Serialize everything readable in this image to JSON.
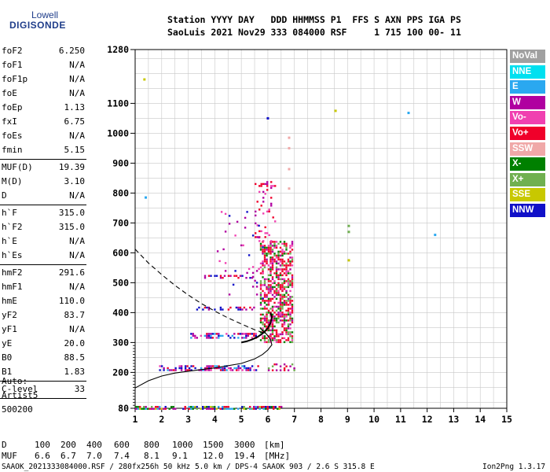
{
  "logo": {
    "brand": "Lowell",
    "product": "DIGISONDE"
  },
  "header": {
    "line1": "Station YYYY DAY   DDD HHMMSS P1  FFS S AXN PPS IGA PS",
    "line2": "SaoLuis 2021 Nov29 333 084000 RSF     1 715 100 00- 11"
  },
  "params": [
    {
      "name": "foF2",
      "value": "6.250"
    },
    {
      "name": "foF1",
      "value": "N/A"
    },
    {
      "name": "foF1p",
      "value": "N/A"
    },
    {
      "name": "foE",
      "value": "N/A"
    },
    {
      "name": "foEp",
      "value": "1.13"
    },
    {
      "name": "fxI",
      "value": "6.75"
    },
    {
      "name": "foEs",
      "value": "N/A"
    },
    {
      "name": "fmin",
      "value": "5.15"
    },
    {
      "name": "MUF(D)",
      "value": "19.39"
    },
    {
      "name": "M(D)",
      "value": "3.10"
    },
    {
      "name": "D",
      "value": "N/A"
    },
    {
      "name": "h`F",
      "value": "315.0"
    },
    {
      "name": "h`F2",
      "value": "315.0"
    },
    {
      "name": "h`E",
      "value": "N/A"
    },
    {
      "name": "h`Es",
      "value": "N/A"
    },
    {
      "name": "hmF2",
      "value": "291.6"
    },
    {
      "name": "hmF1",
      "value": "N/A"
    },
    {
      "name": "hmE",
      "value": "110.0"
    },
    {
      "name": "yF2",
      "value": "83.7"
    },
    {
      "name": "yF1",
      "value": "N/A"
    },
    {
      "name": "yE",
      "value": "20.0"
    },
    {
      "name": "B0",
      "value": "88.5"
    },
    {
      "name": "B1",
      "value": "1.83"
    },
    {
      "name": "C-level",
      "value": "33"
    }
  ],
  "auto": {
    "label": "Auto:",
    "artist": "Artist5",
    "version": "500200"
  },
  "legend": [
    {
      "label": "NoVal",
      "color": "#a0a0a0"
    },
    {
      "label": "NNE",
      "color": "#00e0f0"
    },
    {
      "label": "E",
      "color": "#2aa8f0"
    },
    {
      "label": "W",
      "color": "#b000a0"
    },
    {
      "label": "Vo-",
      "color": "#f040b0"
    },
    {
      "label": "Vo+",
      "color": "#f0002a"
    },
    {
      "label": "SSW",
      "color": "#f0a8a8"
    },
    {
      "label": "X-",
      "color": "#008000"
    },
    {
      "label": "X+",
      "color": "#70b050"
    },
    {
      "label": "SSE",
      "color": "#c8c800"
    },
    {
      "label": "NNW",
      "color": "#1010c8"
    }
  ],
  "muf_table": {
    "d_label": "D",
    "d_values": [
      "100",
      "200",
      "400",
      "600",
      "800",
      "1000",
      "1500",
      "3000"
    ],
    "d_unit": "[km]",
    "muf_label": "MUF",
    "muf_values": [
      "6.6",
      "6.7",
      "7.0",
      "7.4",
      "8.1",
      "9.1",
      "12.0",
      "19.4"
    ],
    "muf_unit": "[MHz]"
  },
  "footer": {
    "left": "SAAOK_2021333084000.RSF / 280fx256h 50 kHz 5.0 km / DPS-4 SAAOK 903 / 2.6 S 315.8 E",
    "right": "Ion2Png 1.3.17"
  },
  "chart_data": {
    "type": "scatter",
    "xlim": [
      1,
      15
    ],
    "ylim": [
      80,
      1280
    ],
    "x_ticks": [
      "1",
      "2",
      "3",
      "4",
      "5",
      "6",
      "7",
      "8",
      "9",
      "10",
      "11",
      "12",
      "13",
      "14",
      "15"
    ],
    "y_ticks": [
      {
        "v": 80,
        "label": "80"
      },
      {
        "v": 200,
        "label": "200"
      },
      {
        "v": 300,
        "label": "300"
      },
      {
        "v": 400,
        "label": "400"
      },
      {
        "v": 500,
        "label": "500"
      },
      {
        "v": 600,
        "label": "600"
      },
      {
        "v": 700,
        "label": "700"
      },
      {
        "v": 800,
        "label": "800"
      },
      {
        "v": 900,
        "label": "900"
      },
      {
        "v": 1000,
        "label": "1000"
      },
      {
        "v": 1100,
        "label": "1100"
      },
      {
        "v": 1280,
        "label": "1280"
      }
    ],
    "y_minor": [
      90,
      100,
      110,
      120,
      130,
      140,
      150,
      160,
      170,
      180,
      190,
      210,
      220,
      230,
      240,
      250,
      260,
      270,
      280,
      290
    ],
    "clusters": [
      {
        "x0": 1.0,
        "x1": 6.6,
        "y0": 80,
        "y1": 88,
        "colors": [
          "#1010c8",
          "#b000a0",
          "#f0002a",
          "#008000",
          "#70b050",
          "#c8c800",
          "#2aa8f0"
        ],
        "density": 0.6
      },
      {
        "x0": 1.9,
        "x1": 5.6,
        "y0": 210,
        "y1": 224,
        "colors": [
          "#1010c8",
          "#b000a0",
          "#f0002a",
          "#2aa8f0",
          "#f040b0"
        ],
        "density": 0.55
      },
      {
        "x0": 3.0,
        "x1": 5.6,
        "y0": 316,
        "y1": 332,
        "colors": [
          "#1010c8",
          "#b000a0",
          "#f0002a",
          "#2aa8f0",
          "#f040b0"
        ],
        "density": 0.55
      },
      {
        "x0": 3.3,
        "x1": 5.5,
        "y0": 412,
        "y1": 420,
        "colors": [
          "#b000a0",
          "#f0002a",
          "#1010c8"
        ],
        "density": 0.4
      },
      {
        "x0": 3.6,
        "x1": 5.5,
        "y0": 518,
        "y1": 526,
        "colors": [
          "#b000a0",
          "#f0002a",
          "#1010c8"
        ],
        "density": 0.4
      },
      {
        "x0": 5.7,
        "x1": 6.9,
        "y0": 300,
        "y1": 640,
        "colors": [
          "#f0002a",
          "#f0002a",
          "#f0002a",
          "#f040b0",
          "#b000a0",
          "#008000",
          "#70b050"
        ],
        "density": 0.55
      },
      {
        "x0": 5.5,
        "x1": 6.3,
        "y0": 640,
        "y1": 840,
        "colors": [
          "#b000a0",
          "#f040b0",
          "#f0002a"
        ],
        "density": 0.15
      },
      {
        "x0": 4.0,
        "x1": 5.8,
        "y0": 430,
        "y1": 740,
        "colors": [
          "#b000a0",
          "#f040b0",
          "#1010c8"
        ],
        "density": 0.03
      },
      {
        "x0": 6.0,
        "x1": 7.0,
        "y0": 210,
        "y1": 230,
        "colors": [
          "#f0002a",
          "#b000a0",
          "#70b050"
        ],
        "density": 0.4
      }
    ],
    "isolated_points": [
      {
        "x": 1.35,
        "y": 1180,
        "color": "#c8c800"
      },
      {
        "x": 1.4,
        "y": 785,
        "color": "#2aa8f0"
      },
      {
        "x": 6.0,
        "y": 1050,
        "color": "#1010c8"
      },
      {
        "x": 8.55,
        "y": 1075,
        "color": "#c8c800"
      },
      {
        "x": 11.3,
        "y": 1068,
        "color": "#2aa8f0"
      },
      {
        "x": 12.3,
        "y": 660,
        "color": "#2aa8f0"
      },
      {
        "x": 9.05,
        "y": 690,
        "color": "#70b050"
      },
      {
        "x": 9.05,
        "y": 670,
        "color": "#70b050"
      },
      {
        "x": 9.05,
        "y": 575,
        "color": "#c8c800"
      },
      {
        "x": 6.8,
        "y": 985,
        "color": "#f0a8a8"
      },
      {
        "x": 6.8,
        "y": 950,
        "color": "#f0a8a8"
      },
      {
        "x": 6.8,
        "y": 880,
        "color": "#f0a8a8"
      },
      {
        "x": 6.8,
        "y": 815,
        "color": "#f0a8a8"
      }
    ],
    "profile_dashed": [
      [
        1.0,
        612
      ],
      [
        1.5,
        566
      ],
      [
        2.0,
        527
      ],
      [
        2.5,
        491
      ],
      [
        3.0,
        459
      ],
      [
        3.5,
        430
      ],
      [
        4.0,
        405
      ],
      [
        4.5,
        382
      ],
      [
        5.0,
        362
      ],
      [
        5.5,
        343
      ],
      [
        5.9,
        330
      ]
    ],
    "profile_solid": [
      [
        1.0,
        148
      ],
      [
        1.5,
        172
      ],
      [
        2.0,
        188
      ],
      [
        2.5,
        198
      ],
      [
        3.0,
        204
      ],
      [
        4.0,
        215
      ],
      [
        5.0,
        230
      ],
      [
        5.5,
        245
      ],
      [
        5.8,
        260
      ],
      [
        6.0,
        275
      ],
      [
        6.15,
        292
      ],
      [
        6.1,
        310
      ],
      [
        5.95,
        328
      ],
      [
        5.8,
        340
      ],
      [
        5.7,
        350
      ]
    ],
    "trace_black": [
      [
        5.0,
        300
      ],
      [
        5.2,
        304
      ],
      [
        5.4,
        310
      ],
      [
        5.6,
        318
      ],
      [
        5.8,
        330
      ],
      [
        6.0,
        348
      ],
      [
        6.1,
        365
      ],
      [
        6.15,
        385
      ],
      [
        6.1,
        400
      ]
    ]
  }
}
